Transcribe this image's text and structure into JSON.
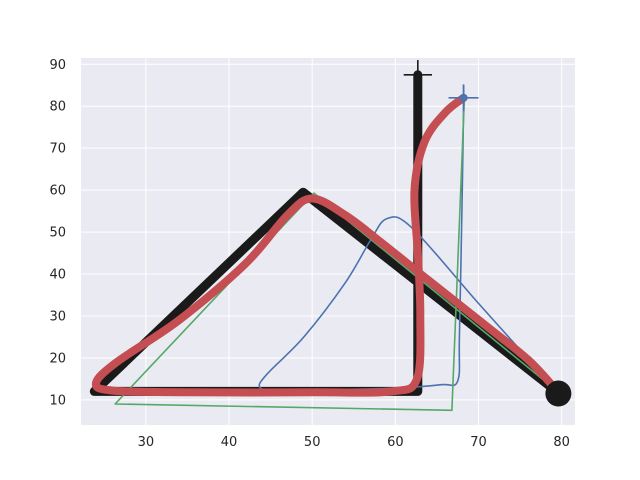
{
  "chart_data": {
    "type": "line",
    "title": "",
    "xlabel": "",
    "ylabel": "",
    "xlim": [
      22.2,
      81.6
    ],
    "ylim": [
      4.0,
      91.5
    ],
    "xticks": [
      30,
      40,
      50,
      60,
      70,
      80
    ],
    "yticks": [
      10,
      20,
      30,
      40,
      50,
      60,
      70,
      80,
      90
    ],
    "grid": true,
    "legend": "none",
    "background": "#eaeaf2",
    "gridColor": "#ffffff",
    "series": [
      {
        "color": "#1a1a1a",
        "style": "thick-polyline",
        "points": [
          [
            62.7,
            87.5
          ],
          [
            62.7,
            12.0
          ],
          [
            23.8,
            12.0
          ],
          [
            48.9,
            59.5
          ],
          [
            79.7,
            11.5
          ]
        ]
      },
      {
        "color": "#4c72b0",
        "style": "thin-curve",
        "points": [
          [
            68.2,
            85.0
          ],
          [
            68.2,
            80.0
          ],
          [
            68.0,
            55.0
          ],
          [
            67.7,
            25.0
          ],
          [
            67.5,
            14.5
          ],
          [
            65.5,
            13.6
          ],
          [
            60.0,
            12.8
          ],
          [
            52.0,
            12.4
          ],
          [
            45.5,
            12.4
          ],
          [
            43.7,
            13.0
          ],
          [
            44.5,
            16.0
          ],
          [
            49.0,
            25.0
          ],
          [
            54.0,
            38.0
          ],
          [
            57.0,
            48.0
          ],
          [
            59.0,
            53.2
          ],
          [
            62.0,
            51.0
          ],
          [
            70.0,
            33.0
          ],
          [
            79.5,
            12.0
          ]
        ]
      },
      {
        "color": "#55a868",
        "style": "thin-polyline",
        "points": [
          [
            68.3,
            82.0
          ],
          [
            66.8,
            7.5
          ],
          [
            26.3,
            9.0
          ],
          [
            50.2,
            59.3
          ],
          [
            79.5,
            12.0
          ]
        ]
      },
      {
        "color": "#c44e52",
        "style": "thick-curve",
        "points": [
          [
            68.2,
            82.0
          ],
          [
            66.0,
            78.5
          ],
          [
            63.5,
            71.5
          ],
          [
            62.3,
            60.0
          ],
          [
            62.7,
            45.0
          ],
          [
            63.0,
            30.0
          ],
          [
            62.6,
            15.0
          ],
          [
            59.5,
            12.0
          ],
          [
            50.0,
            11.8
          ],
          [
            35.0,
            11.8
          ],
          [
            26.0,
            12.2
          ],
          [
            24.0,
            14.0
          ],
          [
            26.5,
            19.0
          ],
          [
            34.0,
            29.0
          ],
          [
            42.0,
            42.5
          ],
          [
            47.0,
            54.0
          ],
          [
            50.0,
            58.0
          ],
          [
            54.0,
            54.0
          ],
          [
            58.0,
            48.0
          ],
          [
            64.0,
            38.5
          ],
          [
            71.0,
            27.5
          ],
          [
            76.0,
            19.5
          ],
          [
            79.5,
            12.0
          ]
        ]
      }
    ],
    "markers": [
      {
        "name": "end-marker",
        "x": 79.6,
        "y": 11.5,
        "color": "#1a1a1a"
      }
    ],
    "errorbars": [
      {
        "name": "black-errorbar",
        "x": 62.7,
        "y": 87.5,
        "xerr": 1.7,
        "yerr": 3.5,
        "color": "#1a1a1a"
      },
      {
        "name": "blue-errorbar",
        "x": 68.2,
        "y": 82.0,
        "xerr": 1.8,
        "yerr": 3.2,
        "color": "#4c72b0"
      }
    ]
  }
}
